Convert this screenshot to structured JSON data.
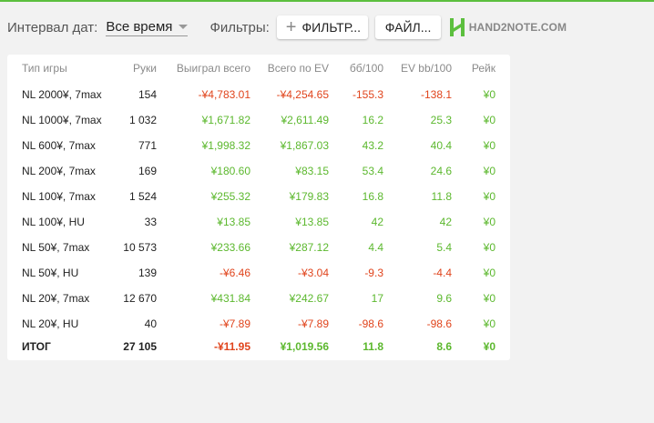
{
  "toolbar": {
    "interval_label": "Интервал дат:",
    "interval_value": "Все время",
    "filters_label": "Фильтры:",
    "filter_button": "ФИЛЬТР...",
    "file_button": "ФАЙЛ...",
    "logo_text": "HAND2NOTE.COM"
  },
  "colors": {
    "accent": "#5cbf3e",
    "positive": "#5cb82e",
    "negative": "#e0441c"
  },
  "table": {
    "headers": [
      "Тип игры",
      "Руки",
      "Выиграл всего",
      "Всего по EV",
      "бб/100",
      "EV bb/100",
      "Рейк"
    ],
    "rows": [
      {
        "game": "NL 2000¥, 7max",
        "hands": "154",
        "won": "-¥4,783.01",
        "ev": "-¥4,254.65",
        "bb100": "-155.3",
        "evbb100": "-138.1",
        "rake": "¥0"
      },
      {
        "game": "NL 1000¥, 7max",
        "hands": "1 032",
        "won": "¥1,671.82",
        "ev": "¥2,611.49",
        "bb100": "16.2",
        "evbb100": "25.3",
        "rake": "¥0"
      },
      {
        "game": "NL 600¥, 7max",
        "hands": "771",
        "won": "¥1,998.32",
        "ev": "¥1,867.03",
        "bb100": "43.2",
        "evbb100": "40.4",
        "rake": "¥0"
      },
      {
        "game": "NL 200¥, 7max",
        "hands": "169",
        "won": "¥180.60",
        "ev": "¥83.15",
        "bb100": "53.4",
        "evbb100": "24.6",
        "rake": "¥0"
      },
      {
        "game": "NL 100¥, 7max",
        "hands": "1 524",
        "won": "¥255.32",
        "ev": "¥179.83",
        "bb100": "16.8",
        "evbb100": "11.8",
        "rake": "¥0"
      },
      {
        "game": "NL 100¥, HU",
        "hands": "33",
        "won": "¥13.85",
        "ev": "¥13.85",
        "bb100": "42",
        "evbb100": "42",
        "rake": "¥0"
      },
      {
        "game": "NL 50¥, 7max",
        "hands": "10 573",
        "won": "¥233.66",
        "ev": "¥287.12",
        "bb100": "4.4",
        "evbb100": "5.4",
        "rake": "¥0"
      },
      {
        "game": "NL 50¥, HU",
        "hands": "139",
        "won": "-¥6.46",
        "ev": "-¥3.04",
        "bb100": "-9.3",
        "evbb100": "-4.4",
        "rake": "¥0"
      },
      {
        "game": "NL 20¥, 7max",
        "hands": "12 670",
        "won": "¥431.84",
        "ev": "¥242.67",
        "bb100": "17",
        "evbb100": "9.6",
        "rake": "¥0"
      },
      {
        "game": "NL 20¥, HU",
        "hands": "40",
        "won": "-¥7.89",
        "ev": "-¥7.89",
        "bb100": "-98.6",
        "evbb100": "-98.6",
        "rake": "¥0"
      }
    ],
    "total": {
      "game": "ИТОГ",
      "hands": "27 105",
      "won": "-¥11.95",
      "ev": "¥1,019.56",
      "bb100": "11.8",
      "evbb100": "8.6",
      "rake": "¥0"
    }
  }
}
